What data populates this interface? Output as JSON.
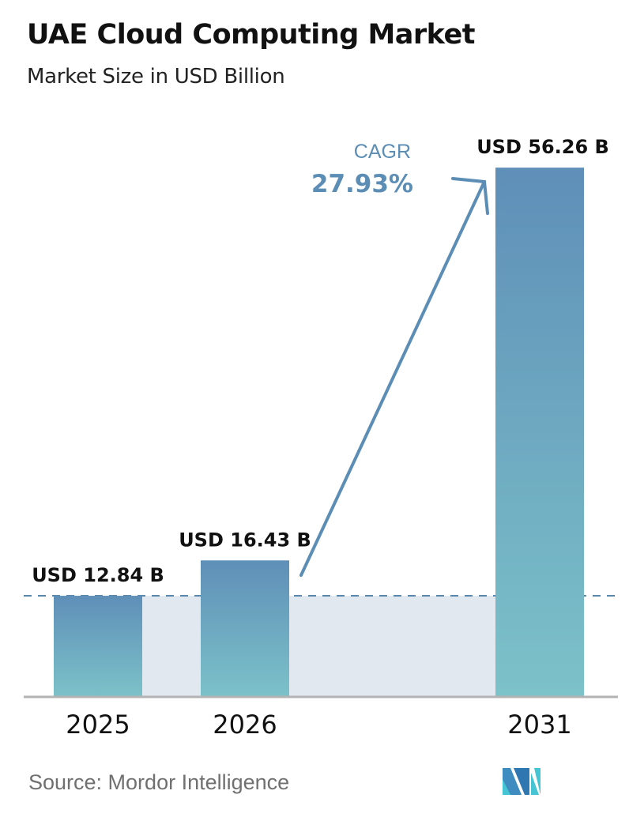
{
  "chart_data": {
    "type": "bar",
    "title": "UAE Cloud Computing Market",
    "subtitle": "Market Size in USD Billion",
    "categories": [
      "2025",
      "2026",
      "2031"
    ],
    "values": [
      12.84,
      16.43,
      56.26
    ],
    "data_labels": [
      "USD 12.84 B",
      "USD 16.43 B",
      "USD 56.26 B"
    ],
    "annotation": {
      "label": "CAGR",
      "value": "27.93%"
    },
    "grid": false,
    "colors": {
      "bar_top": "#5f8fb8",
      "bar_bottom": "#7cc0c8",
      "band": "#e1e8f0",
      "cagr": "#5b8db5",
      "axis": "#b0b0b0"
    }
  },
  "source": "Source:  Mordor Intelligence",
  "logo": {
    "text": "Mordor Intelligence"
  }
}
